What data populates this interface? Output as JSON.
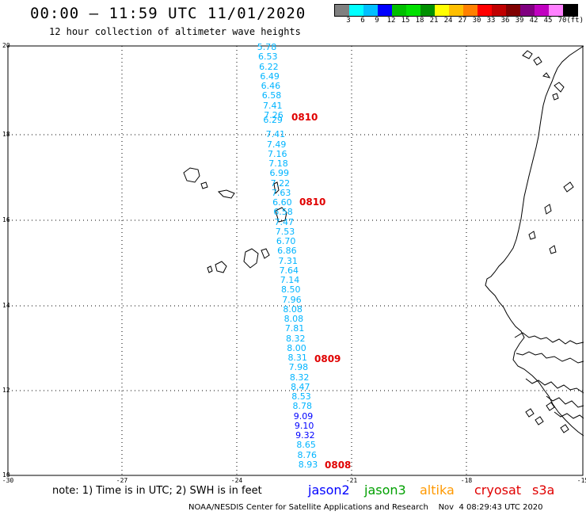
{
  "header": {
    "title": "00:00 – 11:59 UTC 11/01/2020",
    "subtitle": "12 hour collection of altimeter wave heights"
  },
  "colorbar": {
    "colors": [
      "#808080",
      "#00ffff",
      "#00bfff",
      "#0000ff",
      "#00bf00",
      "#00e000",
      "#009000",
      "#ffff00",
      "#ffbf00",
      "#ff8000",
      "#ff0000",
      "#c00000",
      "#800000",
      "#800080",
      "#c000c0",
      "#ff80ff",
      "#000000"
    ],
    "labels": [
      "3",
      "6",
      "9",
      "12",
      "15",
      "18",
      "21",
      "24",
      "27",
      "30",
      "33",
      "36",
      "39",
      "42",
      "45",
      "70",
      "(ft)"
    ]
  },
  "axes": {
    "lat_labels": [
      "20",
      "18",
      "16",
      "14",
      "12",
      "10"
    ],
    "lon_labels": [
      "-30",
      "-27",
      "-24",
      "-21",
      "-18",
      "-15"
    ]
  },
  "track": {
    "heights": [
      {
        "v": "5.78",
        "c": "#00b4ff"
      },
      {
        "v": "6.53",
        "c": "#00b4ff"
      },
      {
        "v": "6.22",
        "c": "#00b4ff"
      },
      {
        "v": "6.49",
        "c": "#00b4ff"
      },
      {
        "v": "6.46",
        "c": "#00b4ff"
      },
      {
        "v": "6.58",
        "c": "#00b4ff"
      },
      {
        "v": "7.41",
        "c": "#00b4ff"
      },
      {
        "v": "7.26",
        "c": "#00b4ff"
      },
      {
        "v": "6.29",
        "c": "#00b4ff"
      },
      {
        "v": "7.41",
        "c": "#00b4ff"
      },
      {
        "v": "7.49",
        "c": "#00b4ff"
      },
      {
        "v": "7.16",
        "c": "#00b4ff"
      },
      {
        "v": "7.18",
        "c": "#00b4ff"
      },
      {
        "v": "6.99",
        "c": "#00b4ff"
      },
      {
        "v": "7.22",
        "c": "#00b4ff"
      },
      {
        "v": "7.63",
        "c": "#00b4ff"
      },
      {
        "v": "6.60",
        "c": "#00b4ff"
      },
      {
        "v": "6.58",
        "c": "#00b4ff"
      },
      {
        "v": "7.47",
        "c": "#00b4ff"
      },
      {
        "v": "7.53",
        "c": "#00b4ff"
      },
      {
        "v": "6.70",
        "c": "#00b4ff"
      },
      {
        "v": "6.86",
        "c": "#00b4ff"
      },
      {
        "v": "7.31",
        "c": "#00b4ff"
      },
      {
        "v": "7.64",
        "c": "#00b4ff"
      },
      {
        "v": "7.14",
        "c": "#00b4ff"
      },
      {
        "v": "8.50",
        "c": "#00b4ff"
      },
      {
        "v": "7.96",
        "c": "#00b4ff"
      },
      {
        "v": "8.08",
        "c": "#00b4ff"
      },
      {
        "v": "8.08",
        "c": "#00b4ff"
      },
      {
        "v": "7.81",
        "c": "#00b4ff"
      },
      {
        "v": "8.32",
        "c": "#00b4ff"
      },
      {
        "v": "8.00",
        "c": "#00b4ff"
      },
      {
        "v": "8.31",
        "c": "#00b4ff"
      },
      {
        "v": "7.98",
        "c": "#00b4ff"
      },
      {
        "v": "8.32",
        "c": "#00b4ff"
      },
      {
        "v": "8.47",
        "c": "#00b4ff"
      },
      {
        "v": "8.53",
        "c": "#00b4ff"
      },
      {
        "v": "8.78",
        "c": "#00b4ff"
      },
      {
        "v": "9.09",
        "c": "#0000ff"
      },
      {
        "v": "9.10",
        "c": "#0000ff"
      },
      {
        "v": "9.32",
        "c": "#0000ff"
      },
      {
        "v": "8.65",
        "c": "#00b4ff"
      },
      {
        "v": "8.76",
        "c": "#00b4ff"
      },
      {
        "v": "8.93",
        "c": "#00b4ff"
      }
    ],
    "times": [
      "0810",
      "0810",
      "0809",
      "0808"
    ]
  },
  "footer": {
    "note": "note: 1) Time is in UTC; 2) SWH is in feet",
    "satellites": [
      {
        "name": "jason2",
        "color": "#0000ff"
      },
      {
        "name": "jason3",
        "color": "#00a000"
      },
      {
        "name": "altika",
        "color": "#ff9900"
      },
      {
        "name": "cryosat",
        "color": "#e00000"
      },
      {
        "name": "s3a",
        "color": "#e00000"
      }
    ],
    "credit": "NOAA/NESDIS Center for Satellite Applications and Research    Nov  4 08:29:43 UTC 2020"
  }
}
